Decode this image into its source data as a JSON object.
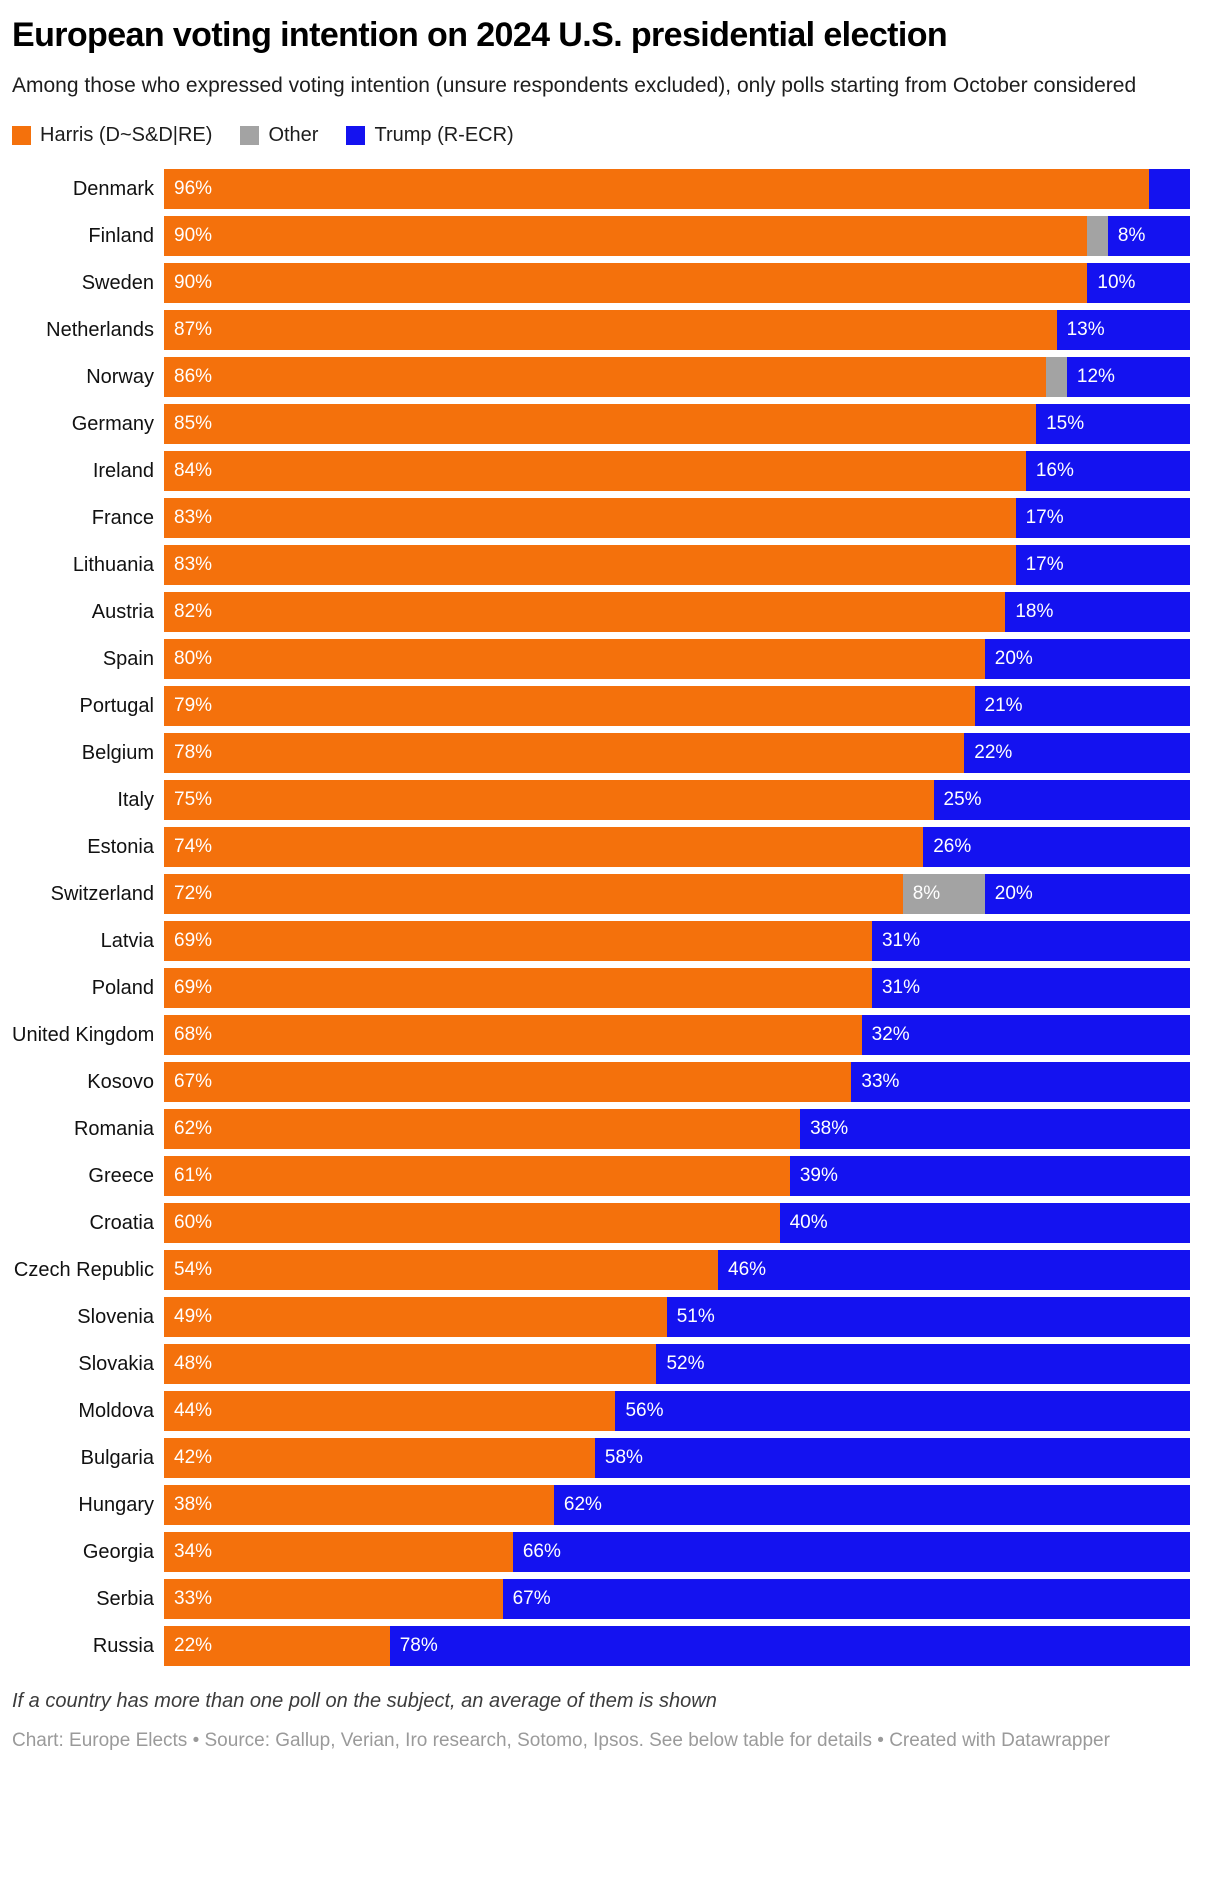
{
  "header": {
    "title": "European voting intention on 2024 U.S. presidential election",
    "subtitle": "Among those who expressed voting intention (unsure respondents excluded), only polls starting from October considered"
  },
  "legend": [
    {
      "label": "Harris (D~S&D|RE)",
      "color": "#f4710c"
    },
    {
      "label": "Other",
      "color": "#a3a3a3"
    },
    {
      "label": "Trump (R-ECR)",
      "color": "#1412f0"
    }
  ],
  "footer": {
    "note": "If a country has more than one poll on the subject, an average of them is shown",
    "credit": "Chart: Europe Elects • Source: Gallup, Verian, Iro research, Sotomo, Ipsos. See below table for details • Created with Datawrapper"
  },
  "chart_data": {
    "type": "bar",
    "orientation": "horizontal",
    "stacked": true,
    "unit": "%",
    "xlim": [
      0,
      100
    ],
    "grid": false,
    "legend_position": "top",
    "series_names": [
      "Harris (D~S&D|RE)",
      "Other",
      "Trump (R-ECR)"
    ],
    "colors": {
      "harris": "#f4710c",
      "other": "#a3a3a3",
      "trump": "#1412f0"
    },
    "rows": [
      {
        "country": "Denmark",
        "harris": 96,
        "other": 0,
        "trump": 4,
        "harris_label": "96%",
        "other_label": "",
        "trump_label": ""
      },
      {
        "country": "Finland",
        "harris": 90,
        "other": 2,
        "trump": 8,
        "harris_label": "90%",
        "other_label": "",
        "trump_label": "8%"
      },
      {
        "country": "Sweden",
        "harris": 90,
        "other": 0,
        "trump": 10,
        "harris_label": "90%",
        "other_label": "",
        "trump_label": "10%"
      },
      {
        "country": "Netherlands",
        "harris": 87,
        "other": 0,
        "trump": 13,
        "harris_label": "87%",
        "other_label": "",
        "trump_label": "13%"
      },
      {
        "country": "Norway",
        "harris": 86,
        "other": 2,
        "trump": 12,
        "harris_label": "86%",
        "other_label": "",
        "trump_label": "12%"
      },
      {
        "country": "Germany",
        "harris": 85,
        "other": 0,
        "trump": 15,
        "harris_label": "85%",
        "other_label": "",
        "trump_label": "15%"
      },
      {
        "country": "Ireland",
        "harris": 84,
        "other": 0,
        "trump": 16,
        "harris_label": "84%",
        "other_label": "",
        "trump_label": "16%"
      },
      {
        "country": "France",
        "harris": 83,
        "other": 0,
        "trump": 17,
        "harris_label": "83%",
        "other_label": "",
        "trump_label": "17%"
      },
      {
        "country": "Lithuania",
        "harris": 83,
        "other": 0,
        "trump": 17,
        "harris_label": "83%",
        "other_label": "",
        "trump_label": "17%"
      },
      {
        "country": "Austria",
        "harris": 82,
        "other": 0,
        "trump": 18,
        "harris_label": "82%",
        "other_label": "",
        "trump_label": "18%"
      },
      {
        "country": "Spain",
        "harris": 80,
        "other": 0,
        "trump": 20,
        "harris_label": "80%",
        "other_label": "",
        "trump_label": "20%"
      },
      {
        "country": "Portugal",
        "harris": 79,
        "other": 0,
        "trump": 21,
        "harris_label": "79%",
        "other_label": "",
        "trump_label": "21%"
      },
      {
        "country": "Belgium",
        "harris": 78,
        "other": 0,
        "trump": 22,
        "harris_label": "78%",
        "other_label": "",
        "trump_label": "22%"
      },
      {
        "country": "Italy",
        "harris": 75,
        "other": 0,
        "trump": 25,
        "harris_label": "75%",
        "other_label": "",
        "trump_label": "25%"
      },
      {
        "country": "Estonia",
        "harris": 74,
        "other": 0,
        "trump": 26,
        "harris_label": "74%",
        "other_label": "",
        "trump_label": "26%"
      },
      {
        "country": "Switzerland",
        "harris": 72,
        "other": 8,
        "trump": 20,
        "harris_label": "72%",
        "other_label": "8%",
        "trump_label": "20%"
      },
      {
        "country": "Latvia",
        "harris": 69,
        "other": 0,
        "trump": 31,
        "harris_label": "69%",
        "other_label": "",
        "trump_label": "31%"
      },
      {
        "country": "Poland",
        "harris": 69,
        "other": 0,
        "trump": 31,
        "harris_label": "69%",
        "other_label": "",
        "trump_label": "31%"
      },
      {
        "country": "United Kingdom",
        "harris": 68,
        "other": 0,
        "trump": 32,
        "harris_label": "68%",
        "other_label": "",
        "trump_label": "32%"
      },
      {
        "country": "Kosovo",
        "harris": 67,
        "other": 0,
        "trump": 33,
        "harris_label": "67%",
        "other_label": "",
        "trump_label": "33%"
      },
      {
        "country": "Romania",
        "harris": 62,
        "other": 0,
        "trump": 38,
        "harris_label": "62%",
        "other_label": "",
        "trump_label": "38%"
      },
      {
        "country": "Greece",
        "harris": 61,
        "other": 0,
        "trump": 39,
        "harris_label": "61%",
        "other_label": "",
        "trump_label": "39%"
      },
      {
        "country": "Croatia",
        "harris": 60,
        "other": 0,
        "trump": 40,
        "harris_label": "60%",
        "other_label": "",
        "trump_label": "40%"
      },
      {
        "country": "Czech Republic",
        "harris": 54,
        "other": 0,
        "trump": 46,
        "harris_label": "54%",
        "other_label": "",
        "trump_label": "46%"
      },
      {
        "country": "Slovenia",
        "harris": 49,
        "other": 0,
        "trump": 51,
        "harris_label": "49%",
        "other_label": "",
        "trump_label": "51%"
      },
      {
        "country": "Slovakia",
        "harris": 48,
        "other": 0,
        "trump": 52,
        "harris_label": "48%",
        "other_label": "",
        "trump_label": "52%"
      },
      {
        "country": "Moldova",
        "harris": 44,
        "other": 0,
        "trump": 56,
        "harris_label": "44%",
        "other_label": "",
        "trump_label": "56%"
      },
      {
        "country": "Bulgaria",
        "harris": 42,
        "other": 0,
        "trump": 58,
        "harris_label": "42%",
        "other_label": "",
        "trump_label": "58%"
      },
      {
        "country": "Hungary",
        "harris": 38,
        "other": 0,
        "trump": 62,
        "harris_label": "38%",
        "other_label": "",
        "trump_label": "62%"
      },
      {
        "country": "Georgia",
        "harris": 34,
        "other": 0,
        "trump": 66,
        "harris_label": "34%",
        "other_label": "",
        "trump_label": "66%"
      },
      {
        "country": "Serbia",
        "harris": 33,
        "other": 0,
        "trump": 67,
        "harris_label": "33%",
        "other_label": "",
        "trump_label": "67%"
      },
      {
        "country": "Russia",
        "harris": 22,
        "other": 0,
        "trump": 78,
        "harris_label": "22%",
        "other_label": "",
        "trump_label": "78%"
      }
    ]
  }
}
